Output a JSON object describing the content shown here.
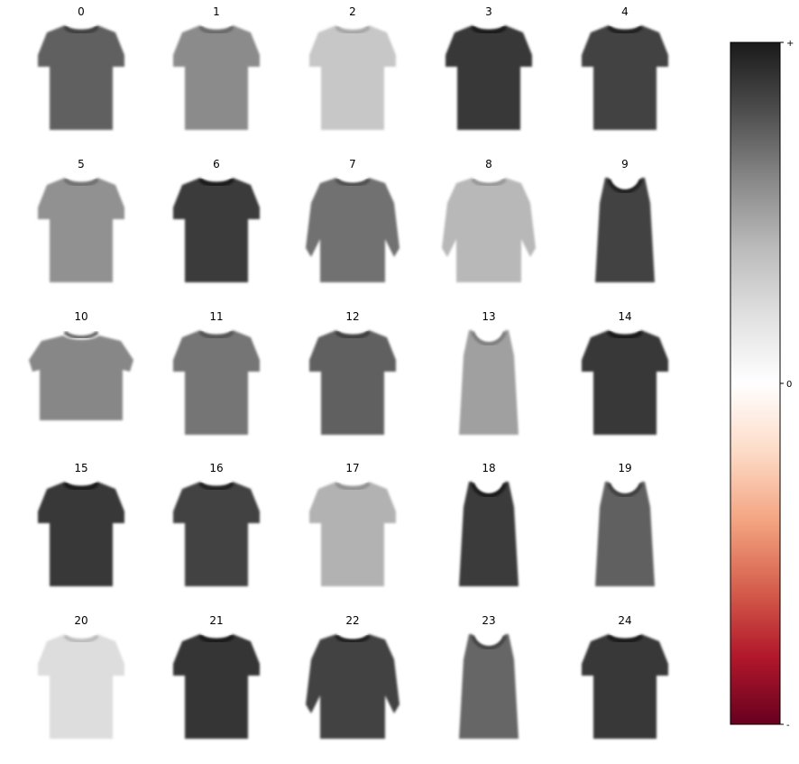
{
  "chart_data": {
    "type": "heatmap",
    "layout": "5x5 grid of garment images with shared colorbar",
    "panels": [
      {
        "label": "0",
        "garment": "tshirt",
        "shade": 0.68
      },
      {
        "label": "1",
        "garment": "tshirt",
        "shade": 0.48
      },
      {
        "label": "2",
        "garment": "tshirt",
        "shade": 0.2
      },
      {
        "label": "3",
        "garment": "tshirt",
        "shade": 0.86
      },
      {
        "label": "4",
        "garment": "tshirt",
        "shade": 0.82
      },
      {
        "label": "5",
        "garment": "tshirt",
        "shade": 0.45
      },
      {
        "label": "6",
        "garment": "tshirt",
        "shade": 0.85
      },
      {
        "label": "7",
        "garment": "sweater",
        "shade": 0.6
      },
      {
        "label": "8",
        "garment": "sweater",
        "shade": 0.27
      },
      {
        "label": "9",
        "garment": "tank",
        "shade": 0.82
      },
      {
        "label": "10",
        "garment": "crop",
        "shade": 0.5
      },
      {
        "label": "11",
        "garment": "tshirt",
        "shade": 0.58
      },
      {
        "label": "12",
        "garment": "tshirt",
        "shade": 0.68
      },
      {
        "label": "13",
        "garment": "tank",
        "shade": 0.38
      },
      {
        "label": "14",
        "garment": "tshirt",
        "shade": 0.86
      },
      {
        "label": "15",
        "garment": "tshirt",
        "shade": 0.86
      },
      {
        "label": "16",
        "garment": "tshirt",
        "shade": 0.82
      },
      {
        "label": "17",
        "garment": "tshirt",
        "shade": 0.3
      },
      {
        "label": "18",
        "garment": "tank",
        "shade": 0.85
      },
      {
        "label": "19",
        "garment": "tank",
        "shade": 0.68
      },
      {
        "label": "20",
        "garment": "tshirt",
        "shade": 0.1
      },
      {
        "label": "21",
        "garment": "tshirt",
        "shade": 0.88
      },
      {
        "label": "22",
        "garment": "sweater",
        "shade": 0.82
      },
      {
        "label": "23",
        "garment": "tank",
        "shade": 0.65
      },
      {
        "label": "24",
        "garment": "tshirt",
        "shade": 0.86
      }
    ],
    "colorbar": {
      "colormap": "RdGy",
      "ticks": [
        "+",
        "0",
        "-"
      ],
      "stops": [
        "#1a1a1a",
        "#4d4d4d",
        "#878787",
        "#bababa",
        "#e0e0e0",
        "#ffffff",
        "#fddbc7",
        "#f4a582",
        "#d6604d",
        "#b2182b",
        "#67001f"
      ]
    },
    "grid": false,
    "axes": "off"
  }
}
